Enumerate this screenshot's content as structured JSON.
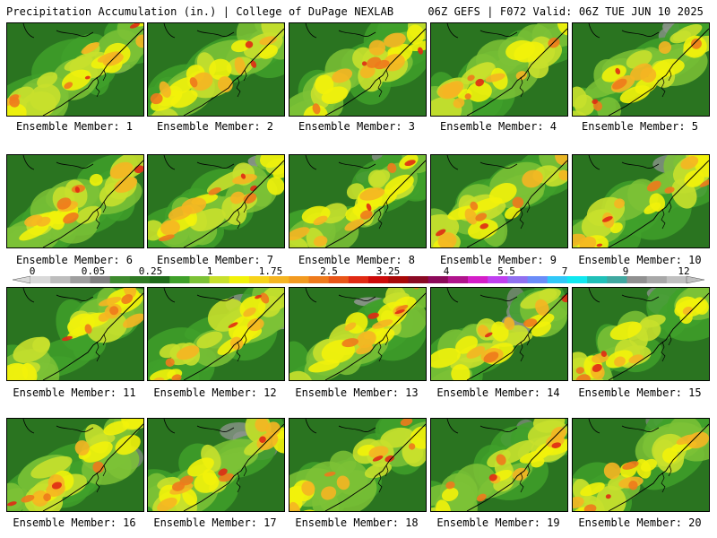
{
  "header": {
    "left": "Precipitation Accumulation (in.) | College of DuPage NEXLAB",
    "right": "06Z GEFS | F072 Valid: 06Z TUE JUN 10 2025"
  },
  "panels": [
    {
      "label": "Ensemble Member: 1"
    },
    {
      "label": "Ensemble Member: 2"
    },
    {
      "label": "Ensemble Member: 3"
    },
    {
      "label": "Ensemble Member: 4"
    },
    {
      "label": "Ensemble Member: 5"
    },
    {
      "label": "Ensemble Member: 6"
    },
    {
      "label": "Ensemble Member: 7"
    },
    {
      "label": "Ensemble Member: 8"
    },
    {
      "label": "Ensemble Member: 9"
    },
    {
      "label": "Ensemble Member: 10"
    },
    {
      "label": "Ensemble Member: 11"
    },
    {
      "label": "Ensemble Member: 12"
    },
    {
      "label": "Ensemble Member: 13"
    },
    {
      "label": "Ensemble Member: 14"
    },
    {
      "label": "Ensemble Member: 15"
    },
    {
      "label": "Ensemble Member: 16"
    },
    {
      "label": "Ensemble Member: 17"
    },
    {
      "label": "Ensemble Member: 18"
    },
    {
      "label": "Ensemble Member: 19"
    },
    {
      "label": "Ensemble Member: 20"
    }
  ],
  "colorbar": {
    "tick_labels": [
      "0",
      "0.05",
      "0.25",
      "1",
      "1.75",
      "2.5",
      "3.25",
      "4",
      "5.5",
      "7",
      "9",
      "12"
    ],
    "colors": [
      "#d9d9d9",
      "#bdbdbd",
      "#9e9e9e",
      "#808080",
      "#3d8a2e",
      "#2f7a24",
      "#1f6b1a",
      "#3fa02a",
      "#7cc236",
      "#c8e02c",
      "#f2f20a",
      "#f7d31a",
      "#f5b522",
      "#f29a20",
      "#ee7a1c",
      "#e85518",
      "#e02a14",
      "#cc0a0a",
      "#a80808",
      "#8a0a24",
      "#8c0a5a",
      "#b0148c",
      "#d41ec8",
      "#c040f0",
      "#9070f0",
      "#6a8cf8",
      "#30c8f8",
      "#10e8f0",
      "#20c0b8",
      "#40a8a0",
      "#909090",
      "#a8a8a8",
      "#c0c0c0"
    ]
  }
}
